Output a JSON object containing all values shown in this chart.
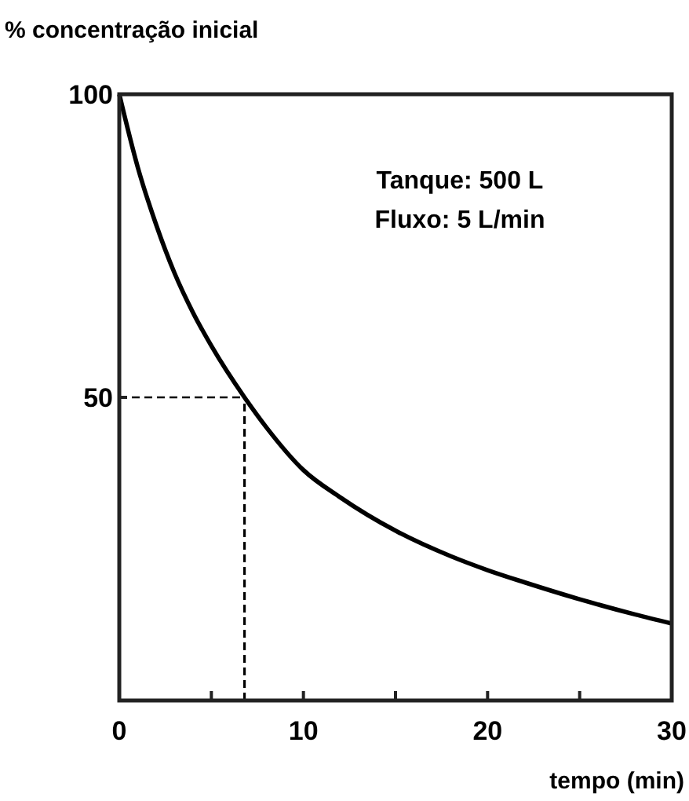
{
  "chart_data": {
    "type": "line",
    "xlabel": "tempo (min)",
    "ylabel": "% concentração inicial",
    "annotations": [
      "Tanque: 500 L",
      "Fluxo: 5 L/min"
    ],
    "x": [
      0,
      1,
      2,
      3,
      4,
      5,
      6.8,
      8,
      10,
      12,
      15,
      18,
      20,
      22,
      25,
      28,
      30
    ],
    "series": [
      {
        "color": "#000000",
        "values": [
          100,
          88,
          78.5,
          70.5,
          64,
          58.5,
          50,
          45,
          38,
          33.5,
          28,
          23.8,
          21.5,
          19.5,
          16.7,
          14.2,
          12.7
        ]
      }
    ],
    "xlim": [
      0,
      30
    ],
    "ylim": [
      0,
      100
    ],
    "xticks": [
      0,
      {
        "value": 5,
        "label": null
      },
      10,
      {
        "value": 15,
        "label": null
      },
      20,
      {
        "value": 25,
        "label": null
      },
      30
    ],
    "yticks": [
      50,
      100
    ],
    "ref_lines": [
      {
        "axis": "y",
        "value": 50,
        "line_style": "dashed",
        "color": "#000000"
      },
      {
        "axis": "x",
        "value": 6.8,
        "line_style": "dashed",
        "color": "#000000"
      }
    ],
    "grid": false,
    "line_style": "solid"
  }
}
